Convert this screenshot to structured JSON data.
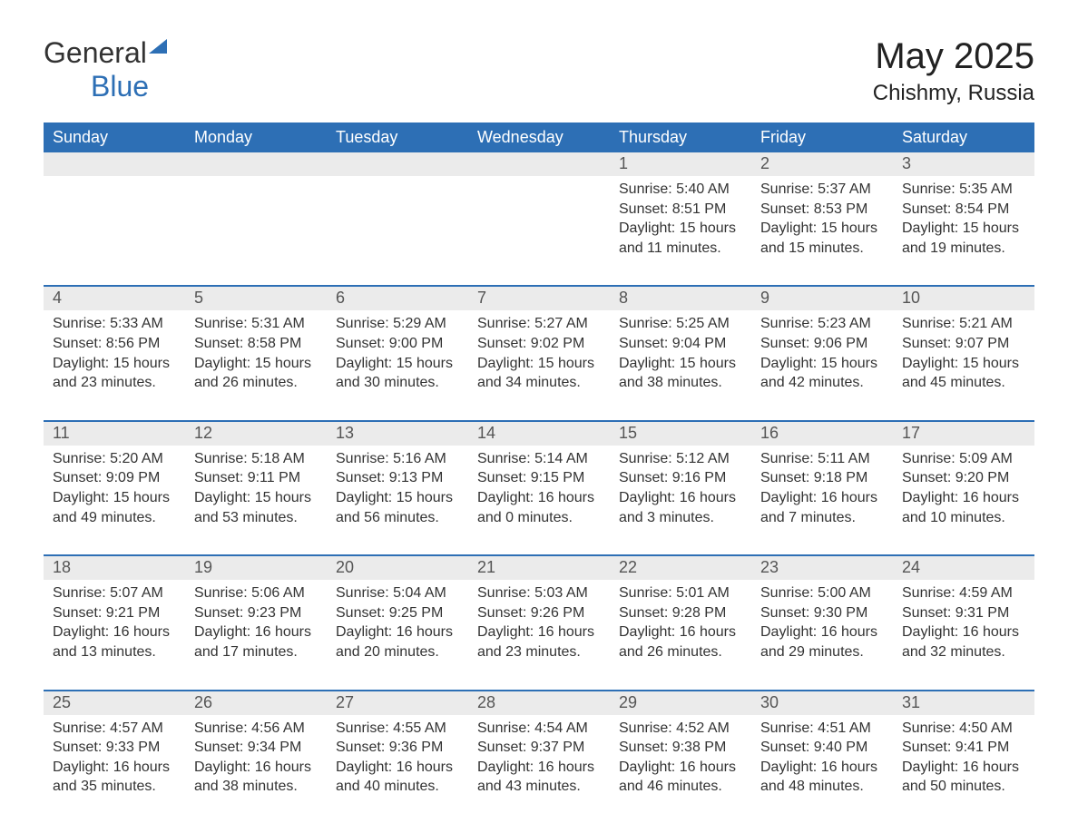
{
  "logo": {
    "word1": "General",
    "word2": "Blue"
  },
  "title": "May 2025",
  "location": "Chishmy, Russia",
  "colors": {
    "header_bg": "#2d6fb5",
    "header_fg": "#ffffff",
    "daynum_bg": "#ebebeb",
    "border": "#2d6fb5",
    "text": "#333333",
    "logo_blue": "#2d6fb5"
  },
  "weekdays": [
    "Sunday",
    "Monday",
    "Tuesday",
    "Wednesday",
    "Thursday",
    "Friday",
    "Saturday"
  ],
  "weeks": [
    [
      null,
      null,
      null,
      null,
      {
        "n": 1,
        "sunrise": "5:40 AM",
        "sunset": "8:51 PM",
        "daylight": "15 hours and 11 minutes."
      },
      {
        "n": 2,
        "sunrise": "5:37 AM",
        "sunset": "8:53 PM",
        "daylight": "15 hours and 15 minutes."
      },
      {
        "n": 3,
        "sunrise": "5:35 AM",
        "sunset": "8:54 PM",
        "daylight": "15 hours and 19 minutes."
      }
    ],
    [
      {
        "n": 4,
        "sunrise": "5:33 AM",
        "sunset": "8:56 PM",
        "daylight": "15 hours and 23 minutes."
      },
      {
        "n": 5,
        "sunrise": "5:31 AM",
        "sunset": "8:58 PM",
        "daylight": "15 hours and 26 minutes."
      },
      {
        "n": 6,
        "sunrise": "5:29 AM",
        "sunset": "9:00 PM",
        "daylight": "15 hours and 30 minutes."
      },
      {
        "n": 7,
        "sunrise": "5:27 AM",
        "sunset": "9:02 PM",
        "daylight": "15 hours and 34 minutes."
      },
      {
        "n": 8,
        "sunrise": "5:25 AM",
        "sunset": "9:04 PM",
        "daylight": "15 hours and 38 minutes."
      },
      {
        "n": 9,
        "sunrise": "5:23 AM",
        "sunset": "9:06 PM",
        "daylight": "15 hours and 42 minutes."
      },
      {
        "n": 10,
        "sunrise": "5:21 AM",
        "sunset": "9:07 PM",
        "daylight": "15 hours and 45 minutes."
      }
    ],
    [
      {
        "n": 11,
        "sunrise": "5:20 AM",
        "sunset": "9:09 PM",
        "daylight": "15 hours and 49 minutes."
      },
      {
        "n": 12,
        "sunrise": "5:18 AM",
        "sunset": "9:11 PM",
        "daylight": "15 hours and 53 minutes."
      },
      {
        "n": 13,
        "sunrise": "5:16 AM",
        "sunset": "9:13 PM",
        "daylight": "15 hours and 56 minutes."
      },
      {
        "n": 14,
        "sunrise": "5:14 AM",
        "sunset": "9:15 PM",
        "daylight": "16 hours and 0 minutes."
      },
      {
        "n": 15,
        "sunrise": "5:12 AM",
        "sunset": "9:16 PM",
        "daylight": "16 hours and 3 minutes."
      },
      {
        "n": 16,
        "sunrise": "5:11 AM",
        "sunset": "9:18 PM",
        "daylight": "16 hours and 7 minutes."
      },
      {
        "n": 17,
        "sunrise": "5:09 AM",
        "sunset": "9:20 PM",
        "daylight": "16 hours and 10 minutes."
      }
    ],
    [
      {
        "n": 18,
        "sunrise": "5:07 AM",
        "sunset": "9:21 PM",
        "daylight": "16 hours and 13 minutes."
      },
      {
        "n": 19,
        "sunrise": "5:06 AM",
        "sunset": "9:23 PM",
        "daylight": "16 hours and 17 minutes."
      },
      {
        "n": 20,
        "sunrise": "5:04 AM",
        "sunset": "9:25 PM",
        "daylight": "16 hours and 20 minutes."
      },
      {
        "n": 21,
        "sunrise": "5:03 AM",
        "sunset": "9:26 PM",
        "daylight": "16 hours and 23 minutes."
      },
      {
        "n": 22,
        "sunrise": "5:01 AM",
        "sunset": "9:28 PM",
        "daylight": "16 hours and 26 minutes."
      },
      {
        "n": 23,
        "sunrise": "5:00 AM",
        "sunset": "9:30 PM",
        "daylight": "16 hours and 29 minutes."
      },
      {
        "n": 24,
        "sunrise": "4:59 AM",
        "sunset": "9:31 PM",
        "daylight": "16 hours and 32 minutes."
      }
    ],
    [
      {
        "n": 25,
        "sunrise": "4:57 AM",
        "sunset": "9:33 PM",
        "daylight": "16 hours and 35 minutes."
      },
      {
        "n": 26,
        "sunrise": "4:56 AM",
        "sunset": "9:34 PM",
        "daylight": "16 hours and 38 minutes."
      },
      {
        "n": 27,
        "sunrise": "4:55 AM",
        "sunset": "9:36 PM",
        "daylight": "16 hours and 40 minutes."
      },
      {
        "n": 28,
        "sunrise": "4:54 AM",
        "sunset": "9:37 PM",
        "daylight": "16 hours and 43 minutes."
      },
      {
        "n": 29,
        "sunrise": "4:52 AM",
        "sunset": "9:38 PM",
        "daylight": "16 hours and 46 minutes."
      },
      {
        "n": 30,
        "sunrise": "4:51 AM",
        "sunset": "9:40 PM",
        "daylight": "16 hours and 48 minutes."
      },
      {
        "n": 31,
        "sunrise": "4:50 AM",
        "sunset": "9:41 PM",
        "daylight": "16 hours and 50 minutes."
      }
    ]
  ],
  "labels": {
    "sunrise": "Sunrise",
    "sunset": "Sunset",
    "daylight": "Daylight"
  }
}
